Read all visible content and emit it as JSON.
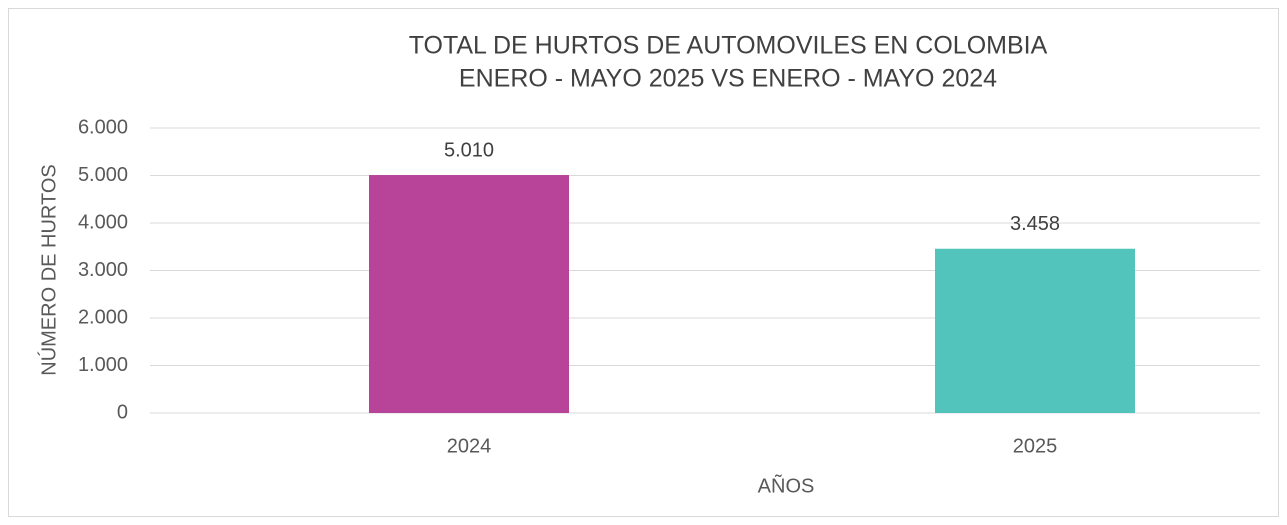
{
  "chart_data": {
    "type": "bar",
    "title": [
      "TOTAL DE HURTOS DE AUTOMOVILES EN COLOMBIA",
      "ENERO - MAYO 2025 VS ENERO - MAYO 2024"
    ],
    "x_label": "AÑOS",
    "y_label": "NÚMERO DE HURTOS",
    "categories": [
      "2024",
      "2025"
    ],
    "values": [
      5010,
      3458
    ],
    "value_labels": [
      "5.010",
      "3.458"
    ],
    "colors": [
      "#b8449a",
      "#52c4bc"
    ],
    "ylim": [
      0,
      6000
    ],
    "yticks": [
      0,
      {
        "value": 1000,
        "label": "1.000"
      },
      {
        "value": 2000,
        "label": "2.000"
      },
      {
        "value": 3000,
        "label": "3.000"
      },
      {
        "value": 4000,
        "label": "4.000"
      },
      {
        "value": 5000,
        "label": "5.000"
      },
      {
        "value": 6000,
        "label": "6.000"
      }
    ],
    "grid": true
  }
}
